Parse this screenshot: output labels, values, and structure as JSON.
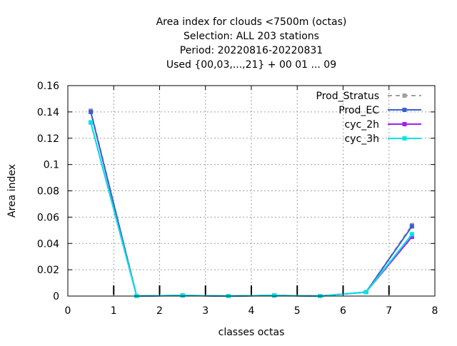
{
  "chart_data": {
    "type": "line",
    "title_lines": [
      "Area index  for clouds <7500m (octas)",
      "Selection: ALL    203 stations",
      "Period: 20220816-20220831",
      "Used {00,03,...,21} + 00 01 ... 09"
    ],
    "xlabel": "classes octas",
    "ylabel": "Area index",
    "xlim": [
      0,
      8
    ],
    "ylim": [
      0,
      0.16
    ],
    "x_ticks": [
      "0",
      "1",
      "2",
      "3",
      "4",
      "5",
      "6",
      "7",
      "8"
    ],
    "y_ticks": [
      "0",
      "0.02",
      "0.04",
      "0.06",
      "0.08",
      "0.1",
      "0.12",
      "0.14",
      "0.16"
    ],
    "grid": true,
    "legend_position": "top-right",
    "class_boundaries": [
      1,
      2,
      3,
      4,
      5,
      6,
      7
    ],
    "x": [
      0.5,
      1.5,
      2.5,
      3.5,
      4.5,
      5.5,
      6.5,
      7.5
    ],
    "series": [
      {
        "name": "Prod_Stratus",
        "color": "#a0a0a0",
        "dashed": true,
        "values": [
          0.141,
          0.0,
          0.0005,
          0.0,
          0.0005,
          0.0,
          0.003,
          0.054
        ]
      },
      {
        "name": "Prod_EC",
        "color": "#3a5fcd",
        "dashed": false,
        "values": [
          0.14,
          0.0,
          0.0005,
          0.0,
          0.0005,
          0.0,
          0.003,
          0.053
        ]
      },
      {
        "name": "cyc_2h",
        "color": "#a020f0",
        "dashed": false,
        "values": [
          0.132,
          0.0,
          0.0005,
          0.0,
          0.0005,
          0.0,
          0.003,
          0.045
        ]
      },
      {
        "name": "cyc_3h",
        "color": "#00e5e5",
        "dashed": false,
        "values": [
          0.132,
          0.0,
          0.0005,
          0.0,
          0.0005,
          0.0,
          0.003,
          0.047
        ]
      }
    ]
  }
}
